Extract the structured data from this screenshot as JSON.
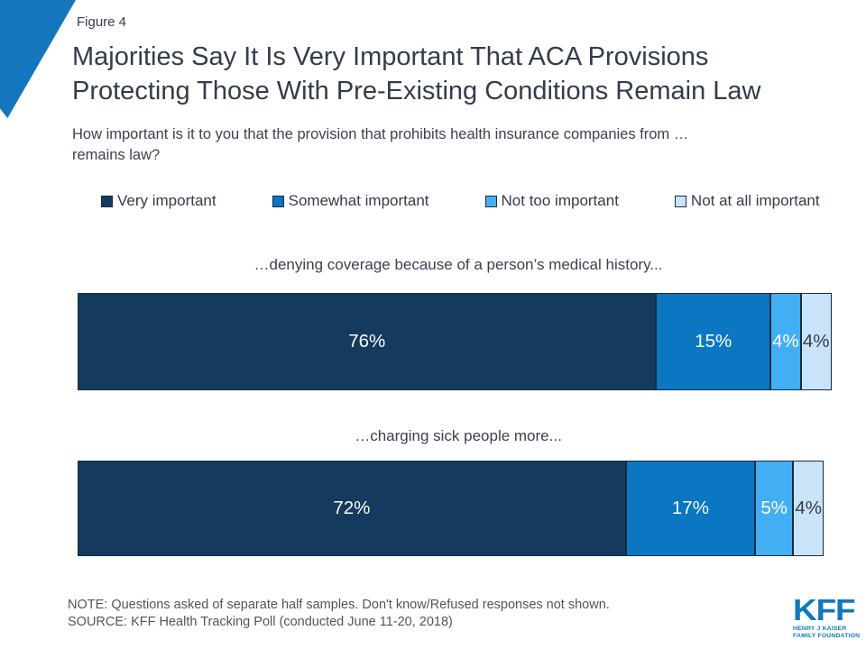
{
  "figure_label": "Figure 4",
  "title": "Majorities Say It Is Very Important That ACA Provisions\nProtecting Those With Pre-Existing Conditions Remain Law",
  "subtitle": "How important is it to you that the provision that prohibits health insurance companies from …\nremains law?",
  "legend": [
    {
      "label": "Very important",
      "color": "#143A5D"
    },
    {
      "label": "Somewhat important",
      "color": "#0B76C2"
    },
    {
      "label": "Not too important",
      "color": "#42AFF5"
    },
    {
      "label": "Not at all important",
      "color": "#C9E4F8"
    }
  ],
  "chart_data": {
    "type": "bar",
    "variant": "horizontal-stacked",
    "unit": "%",
    "xlim": [
      0,
      100
    ],
    "grid": false,
    "legend_position": "top",
    "categories": [
      "…denying coverage because of a person’s medical history...",
      "…charging sick people more..."
    ],
    "series": [
      {
        "name": "Very important",
        "color": "#143A5D",
        "label_color": "#FFFFFF",
        "values": [
          76,
          72
        ]
      },
      {
        "name": "Somewhat important",
        "color": "#0B76C2",
        "label_color": "#FFFFFF",
        "values": [
          15,
          17
        ]
      },
      {
        "name": "Not too important",
        "color": "#42AFF5",
        "label_color": "#FFFFFF",
        "values": [
          4,
          5
        ]
      },
      {
        "name": "Not at all important",
        "color": "#C9E4F8",
        "label_color": "#333C4B",
        "values": [
          4,
          4
        ]
      }
    ]
  },
  "notes": {
    "note": "NOTE: Questions asked of separate half samples. Don't know/Refused responses not shown.",
    "source": "SOURCE: KFF Health Tracking Poll (conducted June 11-20, 2018)"
  },
  "logo": {
    "wordmark": "KFF",
    "tagline": "HENRY J KAISER\nFAMILY FOUNDATION"
  },
  "colors": {
    "accent_blue": "#1477BD",
    "segment_border": "#152C42",
    "title_text": "#333C4B",
    "note_text": "#50555D",
    "logo_blue": "#1278BF"
  }
}
